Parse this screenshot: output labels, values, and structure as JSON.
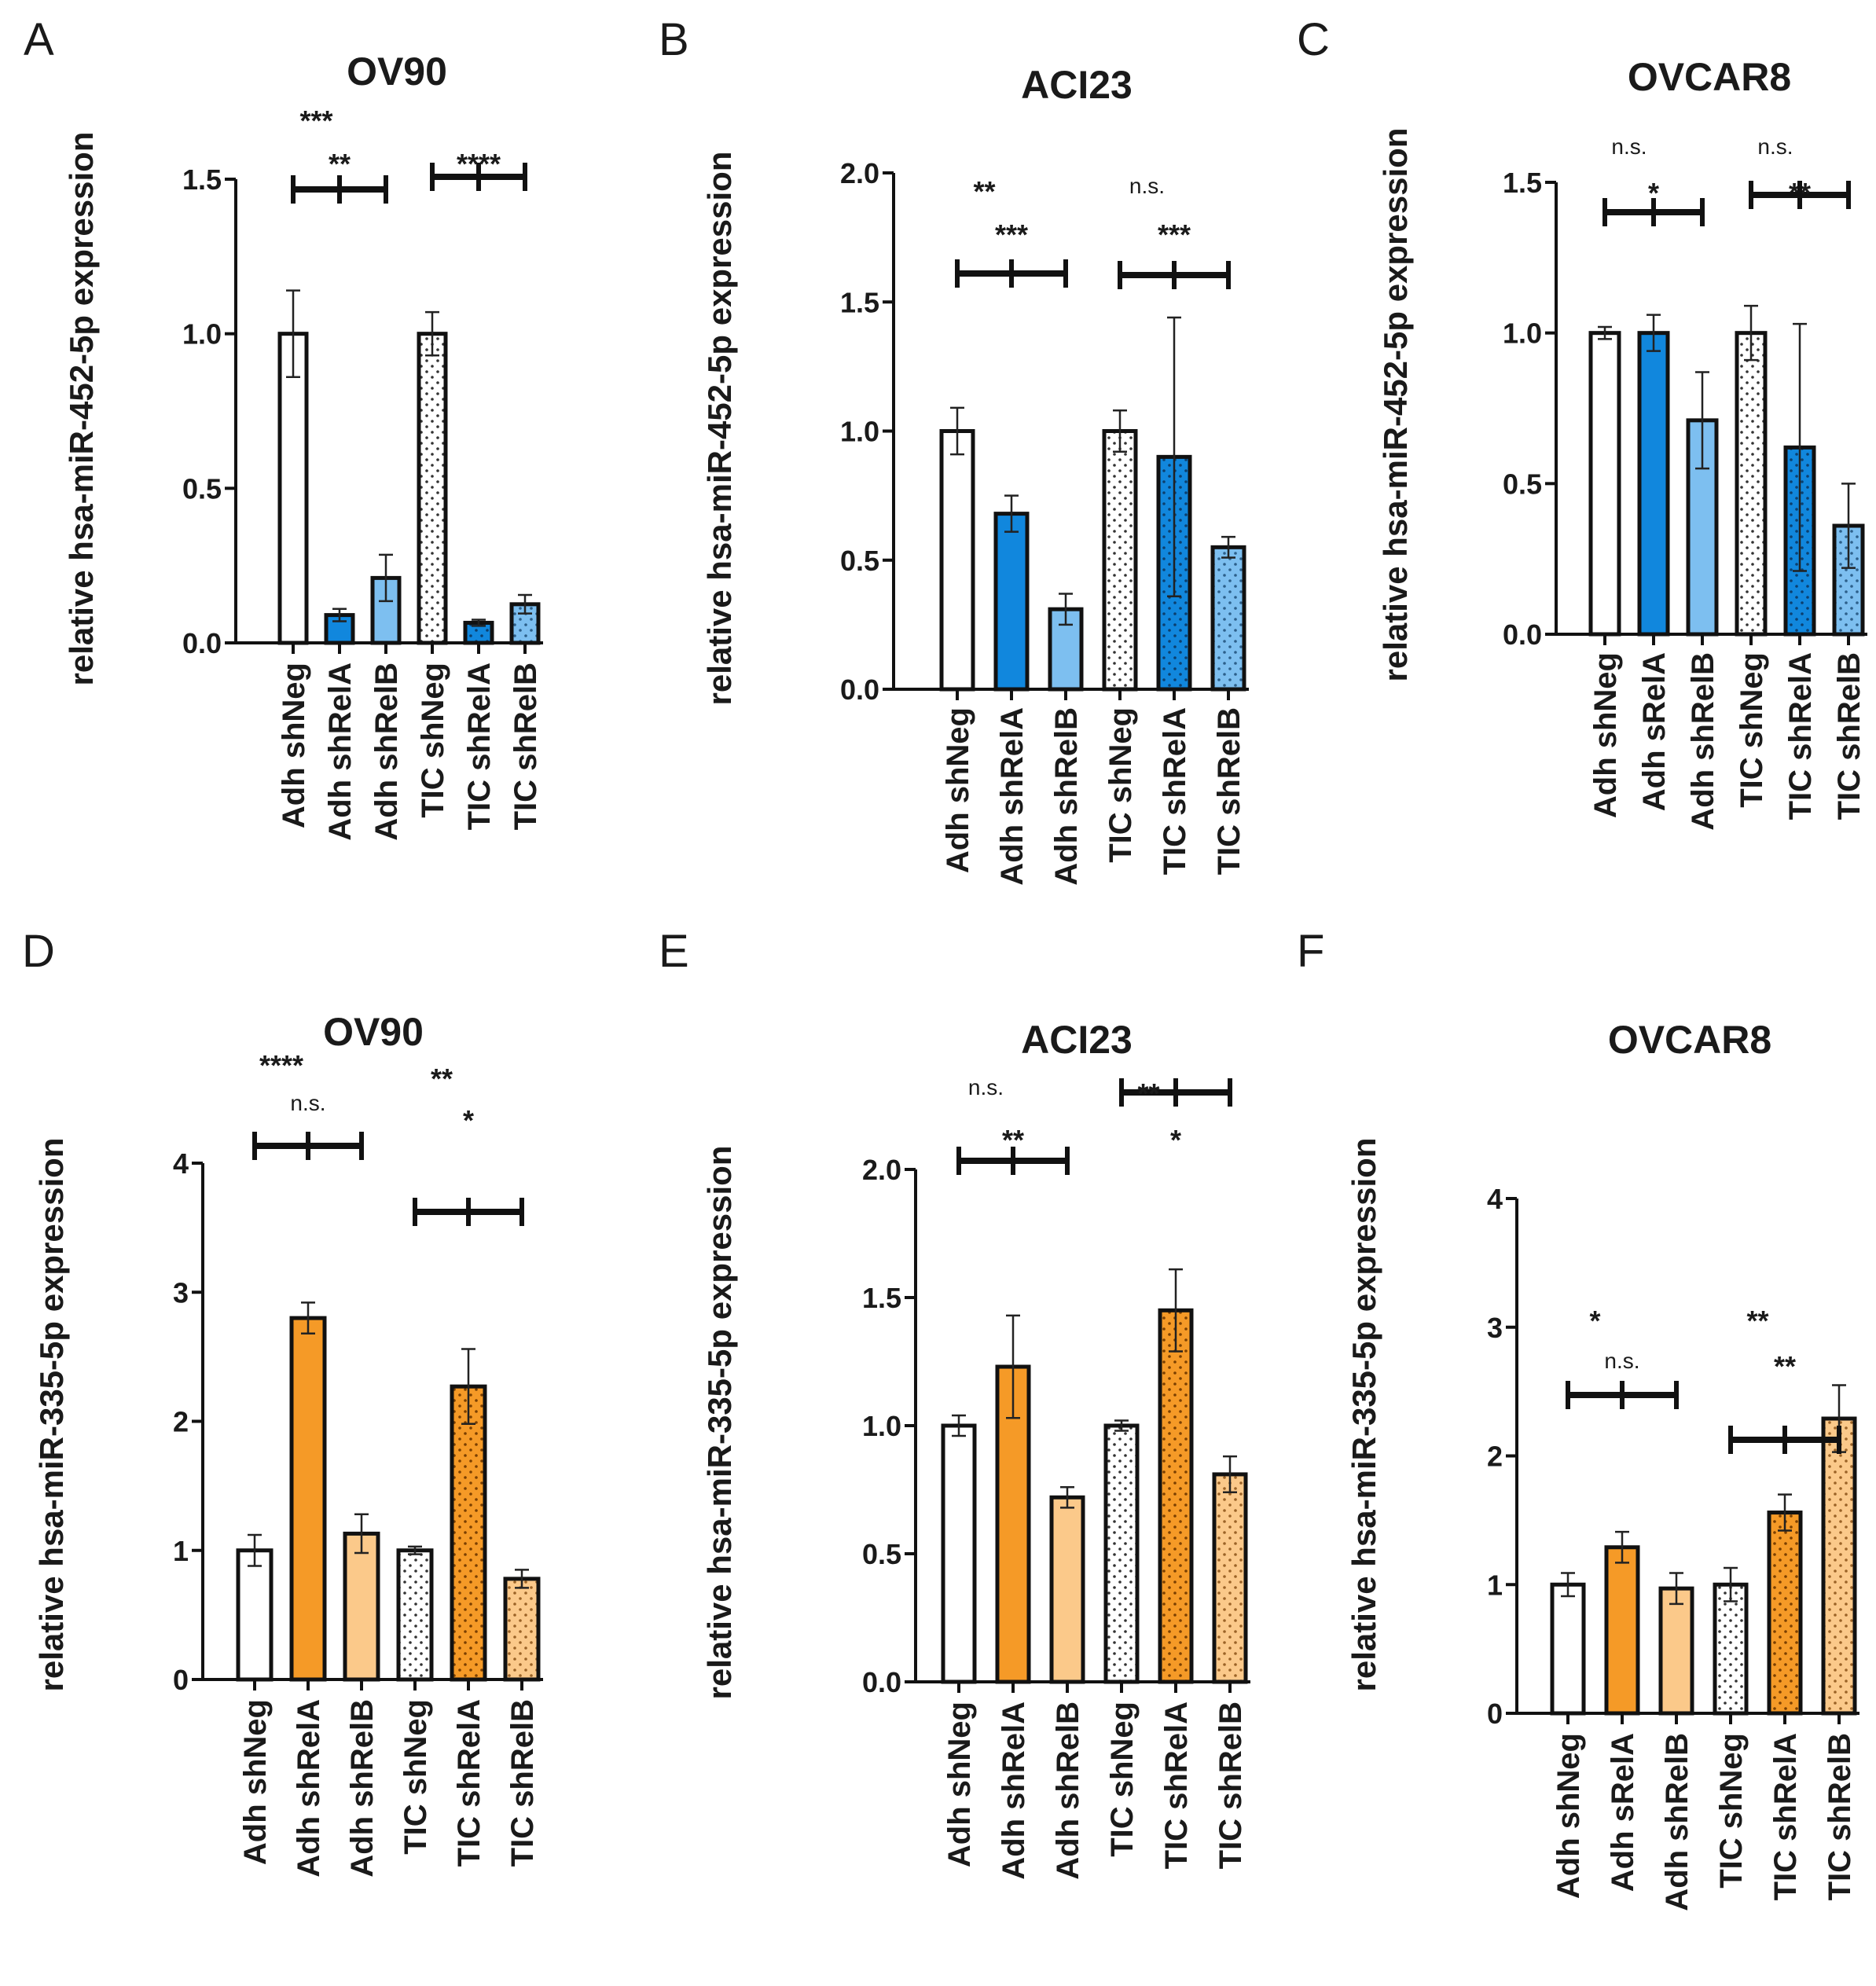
{
  "colors": {
    "ink": "#111111",
    "white": "#ffffff",
    "blue_dark": "#1187dd",
    "blue_light": "#7dbff0",
    "orange_dark": "#f59a27",
    "orange_light": "#fbc98a"
  },
  "chart_data": [
    {
      "panel": "A",
      "type": "bar",
      "title": "OV90",
      "ylabel": "relative hsa-miR-452-5p expression",
      "ylim": [
        0,
        1.5
      ],
      "yticks": [
        "0.0",
        "0.5",
        "1.0",
        "1.5"
      ],
      "tick_values": [
        0,
        0.5,
        1.0,
        1.5
      ],
      "categories": [
        "Adh shNeg",
        "Adh shRelA",
        "Adh shRelB",
        "TIC shNeg",
        "TIC shRelA",
        "TIC shRelB"
      ],
      "values": [
        1.0,
        0.09,
        0.21,
        1.0,
        0.065,
        0.125
      ],
      "errors": [
        0.14,
        0.02,
        0.075,
        0.07,
        0.01,
        0.03
      ],
      "fills": [
        "white",
        "blue_dark",
        "blue_light",
        "white",
        "blue_dark",
        "blue_light"
      ],
      "dotted": [
        false,
        false,
        false,
        true,
        true,
        true
      ],
      "significance": [
        {
          "from": 0,
          "to": 2,
          "label": "**"
        },
        {
          "from": 0,
          "to": 1,
          "label": "***"
        },
        {
          "from": 3,
          "to": 5,
          "label": "****"
        },
        {
          "from": 3,
          "to": 4,
          "label": ""
        }
      ]
    },
    {
      "panel": "B",
      "type": "bar",
      "title": "ACI23",
      "ylabel": "relative hsa-miR-452-5p expression",
      "ylim": [
        0,
        2.0
      ],
      "yticks": [
        "0.0",
        "0.5",
        "1.0",
        "1.5",
        "2.0"
      ],
      "tick_values": [
        0,
        0.5,
        1.0,
        1.5,
        2.0
      ],
      "categories": [
        "Adh shNeg",
        "Adh shRelA",
        "Adh shRelB",
        "TIC shNeg",
        "TIC shRelA",
        "TIC shRelB"
      ],
      "values": [
        1.0,
        0.68,
        0.31,
        1.0,
        0.9,
        0.55
      ],
      "errors": [
        0.09,
        0.07,
        0.06,
        0.08,
        0.54,
        0.04
      ],
      "fills": [
        "white",
        "blue_dark",
        "blue_light",
        "white",
        "blue_dark",
        "blue_light"
      ],
      "dotted": [
        false,
        false,
        false,
        true,
        true,
        true
      ],
      "significance": [
        {
          "from": 0,
          "to": 2,
          "label": "***"
        },
        {
          "from": 0,
          "to": 1,
          "label": "**"
        },
        {
          "from": 3,
          "to": 5,
          "label": "***"
        },
        {
          "from": 3,
          "to": 4,
          "label": "n.s."
        }
      ]
    },
    {
      "panel": "C",
      "type": "bar",
      "title": "OVCAR8",
      "ylabel": "relative hsa-miR-452-5p expression",
      "ylim": [
        0,
        1.5
      ],
      "yticks": [
        "0.0",
        "0.5",
        "1.0",
        "1.5"
      ],
      "tick_values": [
        0,
        0.5,
        1.0,
        1.5
      ],
      "categories": [
        "Adh shNeg",
        "Adh sRelA",
        "Adh shRelB",
        "TIC shNeg",
        "TIC shRelA",
        "TIC shRelB"
      ],
      "values": [
        1.0,
        1.0,
        0.71,
        1.0,
        0.62,
        0.36
      ],
      "errors": [
        0.02,
        0.06,
        0.16,
        0.09,
        0.41,
        0.14
      ],
      "fills": [
        "white",
        "blue_dark",
        "blue_light",
        "white",
        "blue_dark",
        "blue_light"
      ],
      "dotted": [
        false,
        false,
        false,
        true,
        true,
        true
      ],
      "significance": [
        {
          "from": 0,
          "to": 2,
          "label": "*"
        },
        {
          "from": 0,
          "to": 1,
          "label": "n.s."
        },
        {
          "from": 3,
          "to": 5,
          "label": "**"
        },
        {
          "from": 3,
          "to": 4,
          "label": "n.s."
        }
      ]
    },
    {
      "panel": "D",
      "type": "bar",
      "title": "OV90",
      "ylabel": "relative hsa-miR-335-5p expression",
      "ylim": [
        0,
        4
      ],
      "yticks": [
        "0",
        "1",
        "2",
        "3",
        "4"
      ],
      "tick_values": [
        0,
        1,
        2,
        3,
        4
      ],
      "categories": [
        "Adh shNeg",
        "Adh shRelA",
        "Adh shRelB",
        "TIC shNeg",
        "TIC shRelA",
        "TIC shRelB"
      ],
      "values": [
        1.0,
        2.8,
        1.13,
        1.0,
        2.27,
        0.78
      ],
      "errors": [
        0.12,
        0.12,
        0.15,
        0.03,
        0.29,
        0.07
      ],
      "fills": [
        "white",
        "orange_dark",
        "orange_light",
        "white",
        "orange_dark",
        "orange_light"
      ],
      "dotted": [
        false,
        false,
        false,
        true,
        true,
        true
      ],
      "significance": [
        {
          "from": 0,
          "to": 2,
          "label": "n.s."
        },
        {
          "from": 0,
          "to": 1,
          "label": "****"
        },
        {
          "from": 3,
          "to": 5,
          "label": "*"
        },
        {
          "from": 3,
          "to": 4,
          "label": "**"
        }
      ]
    },
    {
      "panel": "E",
      "type": "bar",
      "title": "ACI23",
      "ylabel": "relative hsa-miR-335-5p expression",
      "ylim": [
        0,
        2.0
      ],
      "yticks": [
        "0.0",
        "0.5",
        "1.0",
        "1.5",
        "2.0"
      ],
      "tick_values": [
        0,
        0.5,
        1.0,
        1.5,
        2.0
      ],
      "categories": [
        "Adh shNeg",
        "Adh shRelA",
        "Adh shRelB",
        "TIC shNeg",
        "TIC shRelA",
        "TIC shRelB"
      ],
      "values": [
        1.0,
        1.23,
        0.72,
        1.0,
        1.45,
        0.81
      ],
      "errors": [
        0.04,
        0.2,
        0.04,
        0.02,
        0.16,
        0.07
      ],
      "fills": [
        "white",
        "orange_dark",
        "orange_light",
        "white",
        "orange_dark",
        "orange_light"
      ],
      "dotted": [
        false,
        false,
        false,
        true,
        true,
        true
      ],
      "significance": [
        {
          "from": 0,
          "to": 2,
          "label": "**"
        },
        {
          "from": 0,
          "to": 1,
          "label": "n.s."
        },
        {
          "from": 3,
          "to": 5,
          "label": "*"
        },
        {
          "from": 3,
          "to": 4,
          "label": "**"
        }
      ]
    },
    {
      "panel": "F",
      "type": "bar",
      "title": "OVCAR8",
      "ylabel": "relative hsa-miR-335-5p expression",
      "ylim": [
        0,
        4
      ],
      "yticks": [
        "0",
        "1",
        "2",
        "3",
        "4"
      ],
      "tick_values": [
        0,
        1,
        2,
        3,
        4
      ],
      "categories": [
        "Adh shNeg",
        "Adh sRelA",
        "Adh shRelB",
        "TIC shNeg",
        "TIC shRelA",
        "TIC shRelB"
      ],
      "values": [
        1.0,
        1.29,
        0.97,
        1.0,
        1.56,
        2.29
      ],
      "errors": [
        0.09,
        0.12,
        0.12,
        0.13,
        0.14,
        0.26
      ],
      "fills": [
        "white",
        "orange_dark",
        "orange_light",
        "white",
        "orange_dark",
        "orange_light"
      ],
      "dotted": [
        false,
        false,
        false,
        true,
        true,
        true
      ],
      "significance": [
        {
          "from": 0,
          "to": 2,
          "label": "n.s."
        },
        {
          "from": 0,
          "to": 1,
          "label": "*"
        },
        {
          "from": 3,
          "to": 5,
          "label": "**"
        },
        {
          "from": 3,
          "to": 4,
          "label": "**"
        }
      ]
    }
  ]
}
